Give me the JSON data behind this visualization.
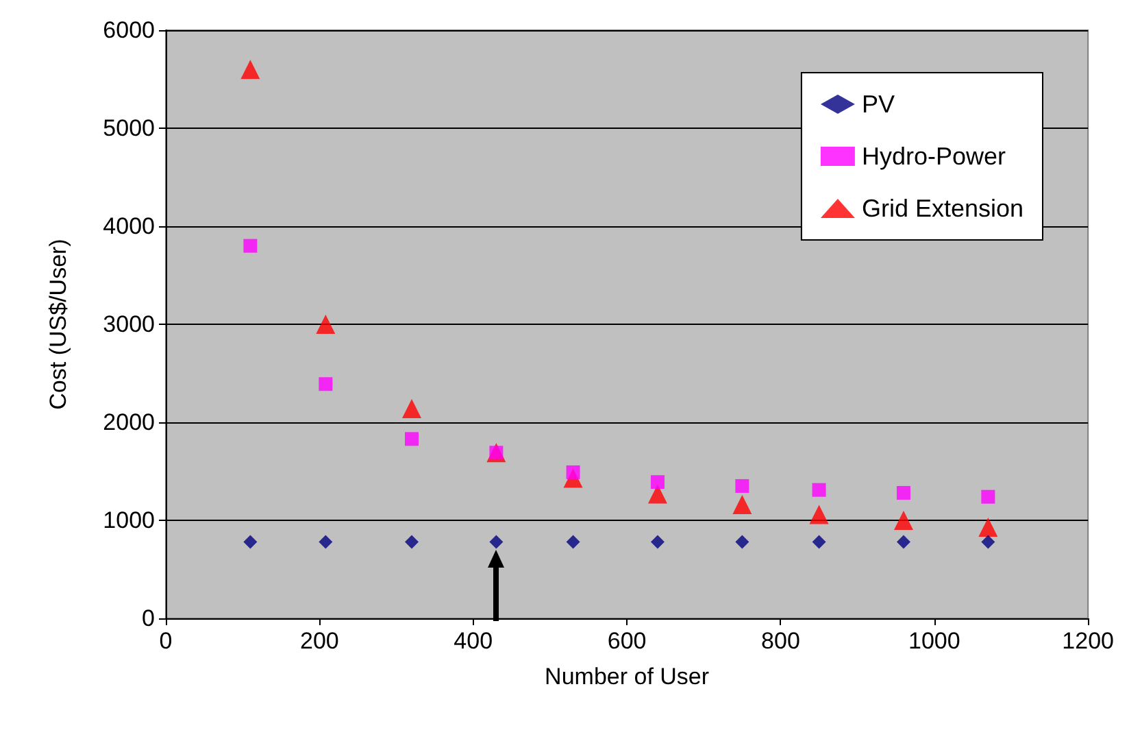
{
  "chart_data": {
    "type": "scatter",
    "xlabel": "Number of User",
    "ylabel": "Cost (US$/User)",
    "x": [
      110,
      208,
      320,
      430,
      530,
      640,
      750,
      850,
      960,
      1070
    ],
    "series": [
      {
        "name": "PV",
        "color": "#000080",
        "marker": "diamond",
        "values": [
          780,
          780,
          780,
          780,
          780,
          780,
          780,
          780,
          780,
          780
        ]
      },
      {
        "name": "Hydro-Power",
        "color": "#ff00ff",
        "marker": "square",
        "values": [
          3800,
          2390,
          1830,
          1690,
          1490,
          1390,
          1350,
          1310,
          1280,
          1240
        ]
      },
      {
        "name": "Grid Extension",
        "color": "#ff0000",
        "marker": "triangle",
        "values": [
          5600,
          3000,
          2140,
          1690,
          1430,
          1270,
          1160,
          1060,
          1000,
          930
        ]
      }
    ],
    "xlim": [
      0,
      1200
    ],
    "xticks": [
      0,
      200,
      400,
      600,
      800,
      1000,
      1200
    ],
    "ylim": [
      0,
      6000
    ],
    "yticks": [
      0,
      1000,
      2000,
      3000,
      4000,
      5000,
      6000
    ],
    "grid": "y",
    "legend": "top right"
  }
}
